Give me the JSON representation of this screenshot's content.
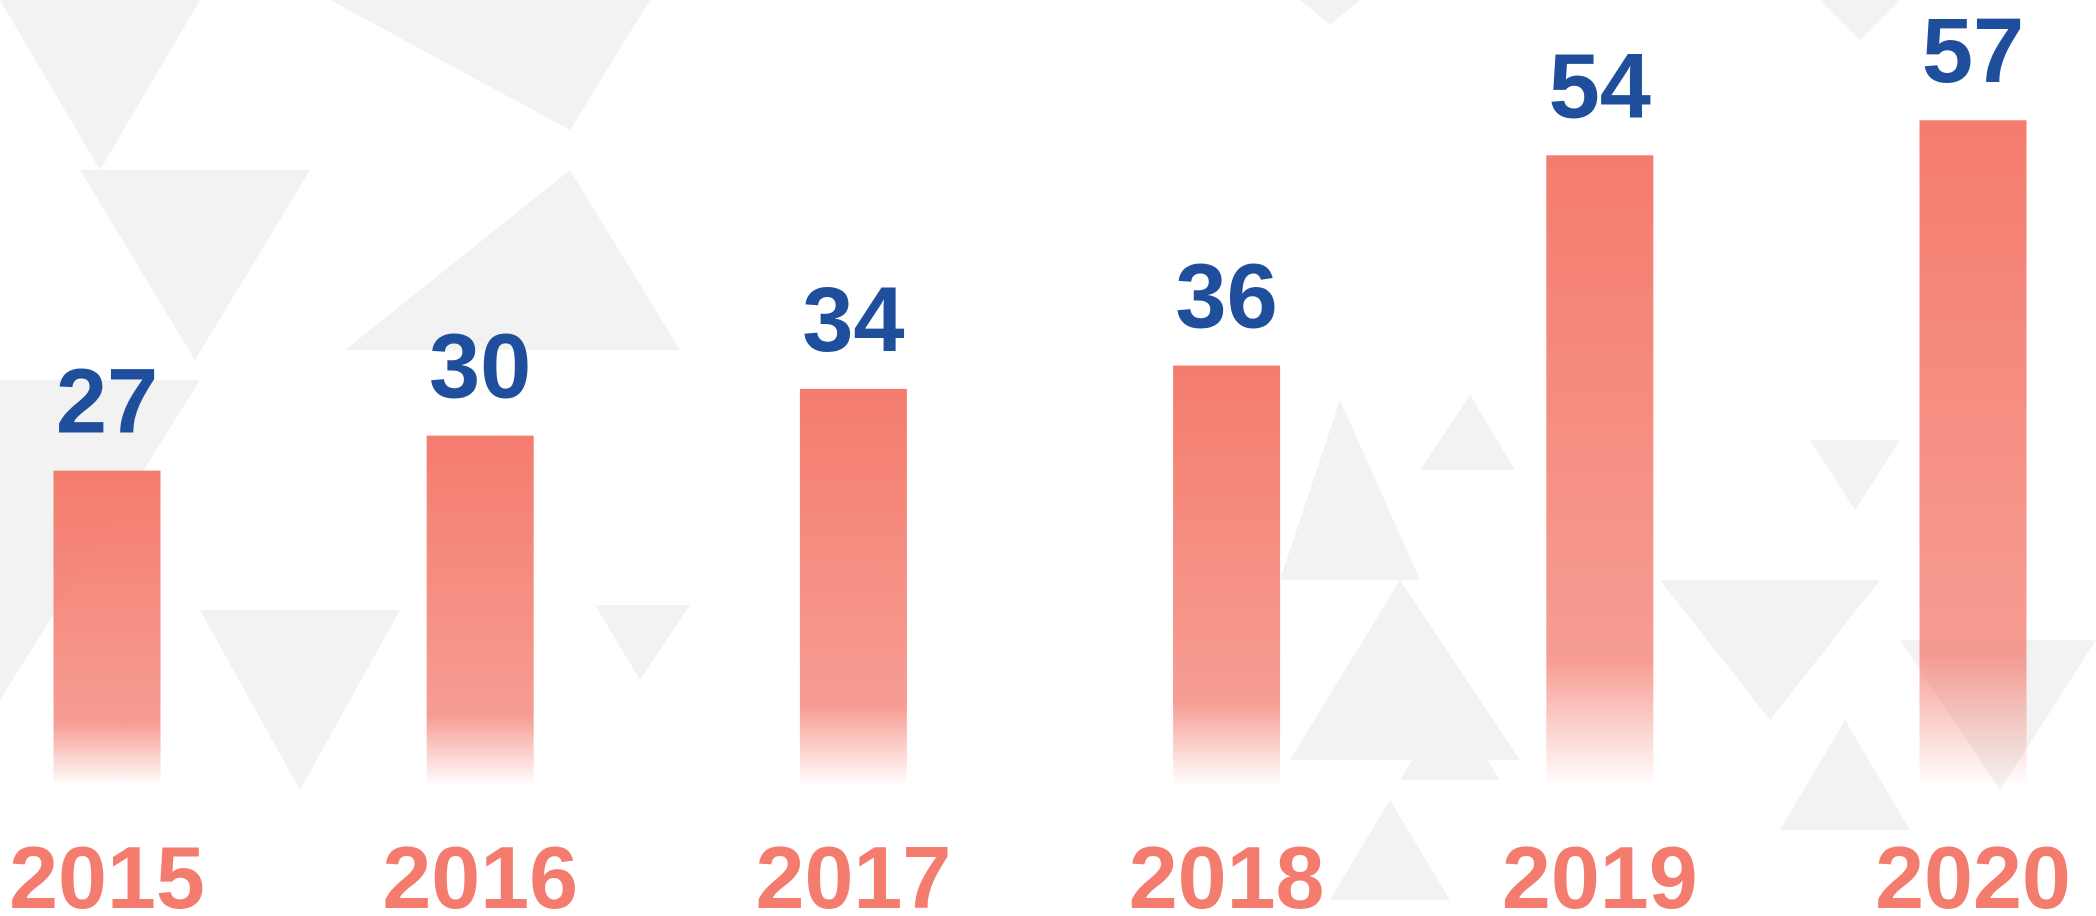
{
  "chart_data": {
    "type": "bar",
    "categories": [
      "2015",
      "2016",
      "2017",
      "2018",
      "2019",
      "2020"
    ],
    "values": [
      27,
      30,
      34,
      36,
      54,
      57
    ],
    "color": "#f47c6e",
    "label_color": "#1f4e9c",
    "category_color": "#f47c6e"
  }
}
